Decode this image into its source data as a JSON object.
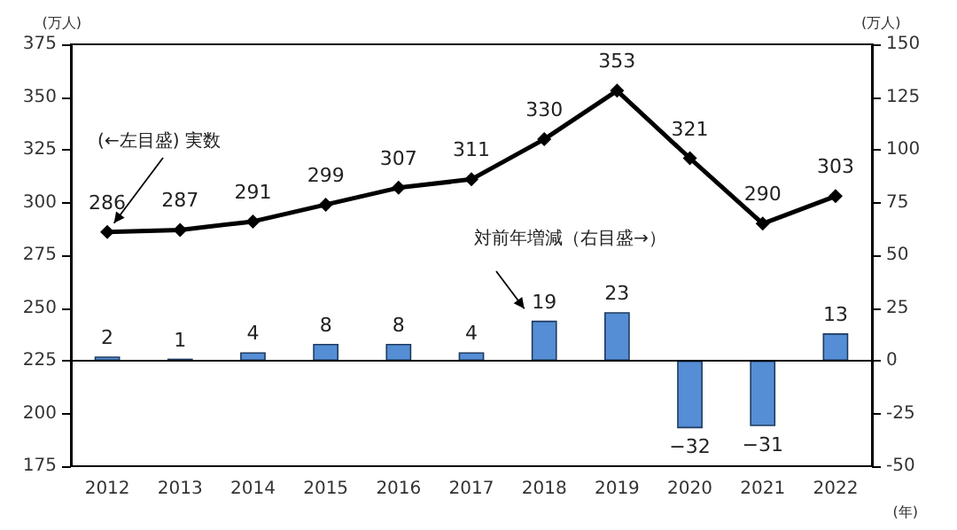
{
  "chart_data": {
    "type": "bar",
    "ylabel": "(万人)",
    "y2label": "(万人)",
    "xlabel": "(年)",
    "categories": [
      "2012",
      "2013",
      "2014",
      "2015",
      "2016",
      "2017",
      "2018",
      "2019",
      "2020",
      "2021",
      "2022"
    ],
    "series": [
      {
        "type": "line",
        "color": "#000000",
        "values": [
          286,
          287,
          291,
          299,
          307,
          311,
          330,
          353,
          321,
          290,
          303
        ]
      },
      {
        "axis": "y2",
        "color": "#558ed5",
        "values": [
          2,
          1,
          4,
          8,
          8,
          4,
          19,
          23,
          -32,
          -31,
          13
        ]
      }
    ],
    "ylim": [
      175,
      375
    ],
    "yticks": [
      175,
      200,
      225,
      250,
      275,
      300,
      325,
      350,
      375
    ],
    "y2lim": [
      -50,
      150
    ],
    "y2ticks": [
      -50,
      -25,
      0,
      25,
      50,
      75,
      100,
      125,
      150
    ],
    "ref_lines": [
      {
        "axis": "y2",
        "value": 0,
        "color": "#000000"
      }
    ],
    "annotations": [
      "(←左目盛) 実数",
      "対前年増減（右目盛→）"
    ],
    "data_labels": true,
    "marker": "diamond",
    "line_style": "solid",
    "grid": false
  }
}
